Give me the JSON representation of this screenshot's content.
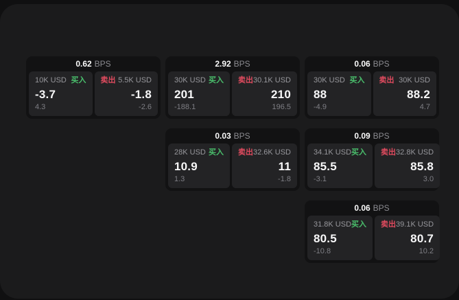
{
  "colors": {
    "page_bg": "#101011",
    "panel_bg": "#1b1b1c",
    "card_bg": "#121213",
    "tile_bg": "#232325",
    "buy_green": "#4abf6c",
    "sell_red": "#e14b5f",
    "value_white": "#f7f7f8",
    "muted_gray": "#97979c"
  },
  "labels": {
    "buy": "买入",
    "sell": "卖出",
    "bps_suffix": "BPS"
  },
  "cards": [
    {
      "bps": "0.62",
      "grid": {
        "col": 1,
        "row": 1
      },
      "buy": {
        "amount": "10K USD",
        "value": "-3.7",
        "sub": "4.3"
      },
      "sell": {
        "amount": "5.5K USD",
        "value": "-1.8",
        "sub": "-2.6"
      }
    },
    {
      "bps": "2.92",
      "grid": {
        "col": 2,
        "row": 1
      },
      "buy": {
        "amount": "30K USD",
        "value": "201",
        "sub": "-188.1"
      },
      "sell": {
        "amount": "30.1K USD",
        "value": "210",
        "sub": "196.5"
      }
    },
    {
      "bps": "0.06",
      "grid": {
        "col": 3,
        "row": 1
      },
      "buy": {
        "amount": "30K USD",
        "value": "88",
        "sub": "-4.9"
      },
      "sell": {
        "amount": "30K USD",
        "value": "88.2",
        "sub": "4.7"
      }
    },
    {
      "bps": "0.03",
      "grid": {
        "col": 2,
        "row": 2
      },
      "buy": {
        "amount": "28K USD",
        "value": "10.9",
        "sub": "1.3"
      },
      "sell": {
        "amount": "32.6K USD",
        "value": "11",
        "sub": "-1.8"
      }
    },
    {
      "bps": "0.09",
      "grid": {
        "col": 3,
        "row": 2
      },
      "buy": {
        "amount": "34.1K USD",
        "value": "85.5",
        "sub": "-3.1"
      },
      "sell": {
        "amount": "32.8K USD",
        "value": "85.8",
        "sub": "3.0"
      }
    },
    {
      "bps": "0.06",
      "grid": {
        "col": 3,
        "row": 3
      },
      "buy": {
        "amount": "31.8K USD",
        "value": "80.5",
        "sub": "-10.8"
      },
      "sell": {
        "amount": "39.1K USD",
        "value": "80.7",
        "sub": "10.2"
      }
    }
  ]
}
